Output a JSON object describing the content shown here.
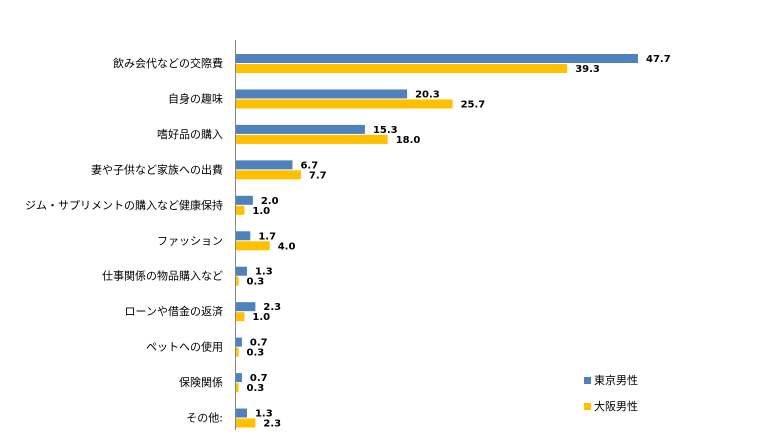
{
  "chart_data": {
    "type": "bar",
    "orientation": "horizontal",
    "categories": [
      "飲み会代などの交際費",
      "自身の趣味",
      "嗜好品の購入",
      "妻や子供など家族への出費",
      "ジム・サプリメントの購入など健康保持",
      "ファッション",
      "仕事関係の物品購入など",
      "ローンや借金の返済",
      "ペットへの使用",
      "保険関係",
      "その他:"
    ],
    "series": [
      {
        "name": "東京男性",
        "color": "#4f81bd",
        "values": [
          47.7,
          20.3,
          15.3,
          6.7,
          2.0,
          1.7,
          1.3,
          2.3,
          0.7,
          0.7,
          1.3
        ]
      },
      {
        "name": "大阪男性",
        "color": "#ffc000",
        "values": [
          39.3,
          25.7,
          18.0,
          7.7,
          1.0,
          4.0,
          0.3,
          1.0,
          0.3,
          0.3,
          2.3
        ]
      }
    ],
    "xlim": [
      0,
      50
    ],
    "grid": false,
    "legend": "bottom-right"
  }
}
